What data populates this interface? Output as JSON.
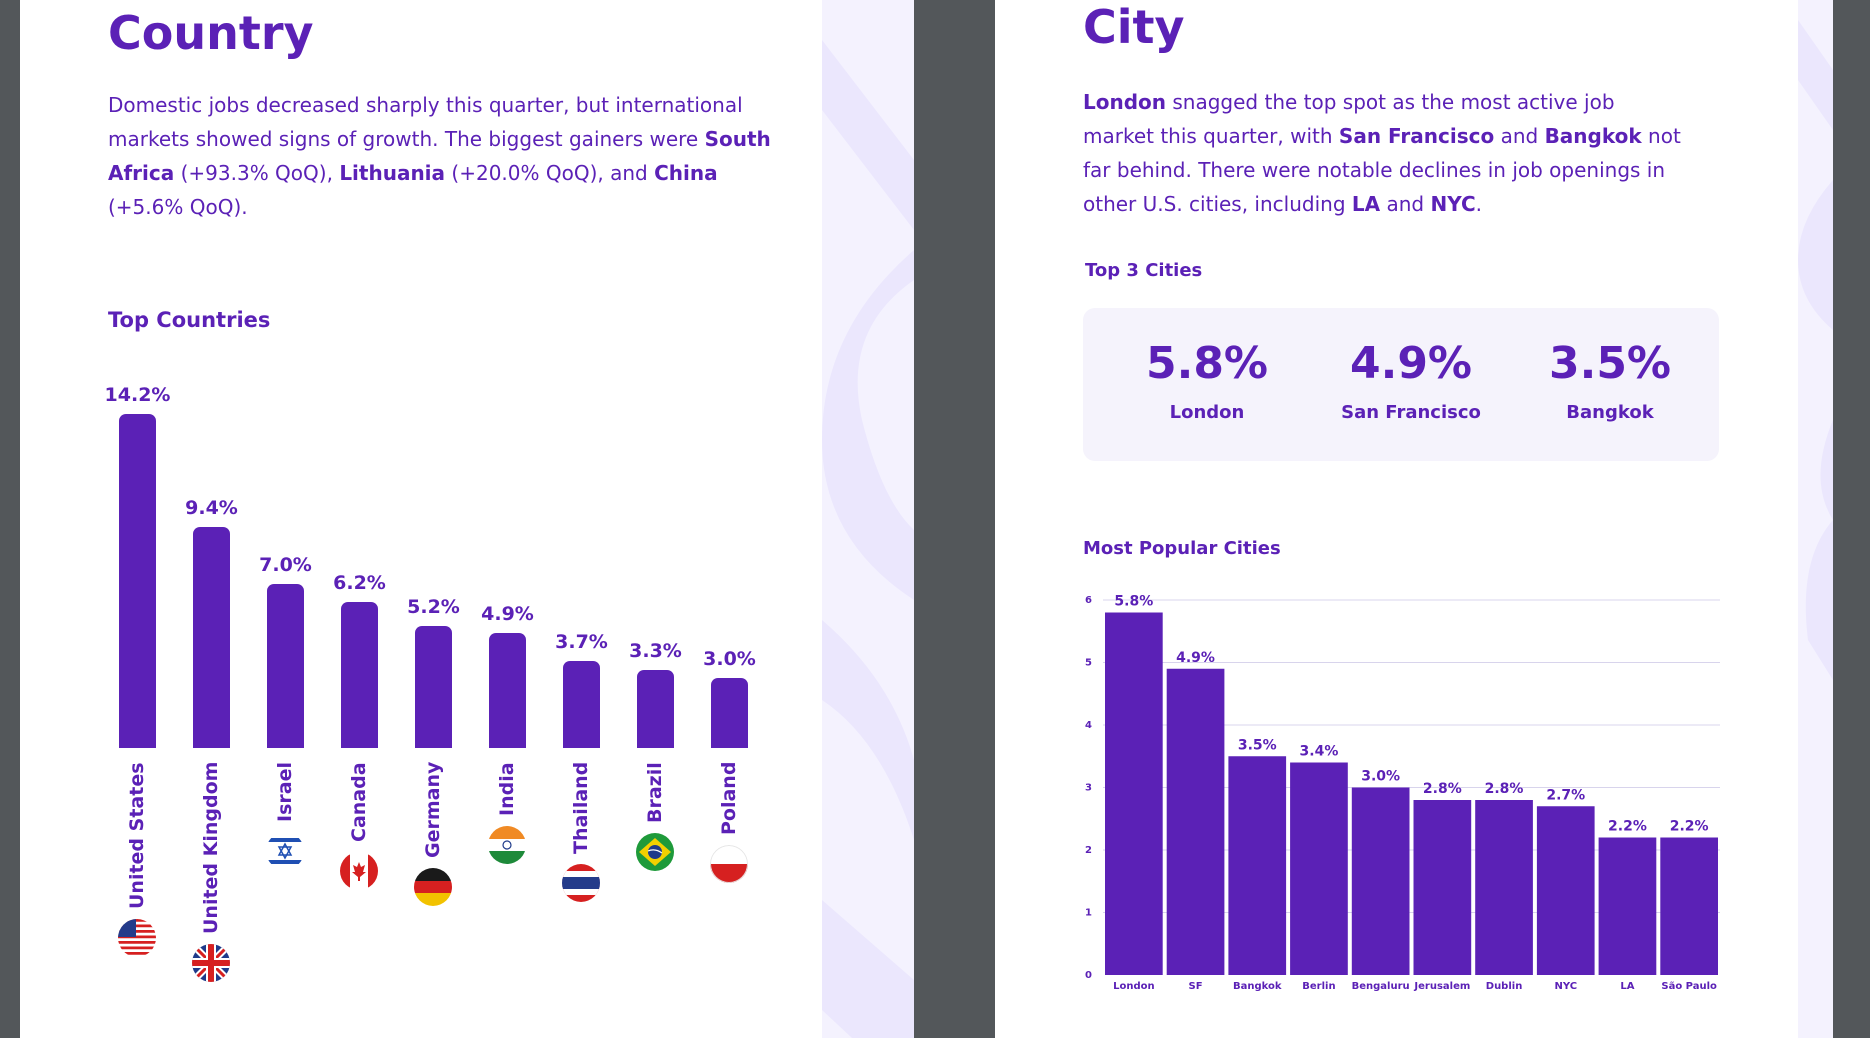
{
  "country": {
    "title": "Country",
    "para_parts": [
      {
        "t": "Domestic jobs decreased sharply this quarter, but international  markets showed signs of growth. The biggest gainers were ",
        "b": false
      },
      {
        "t": "South  Africa",
        "b": true
      },
      {
        "t": " (+93.3% QoQ), ",
        "b": false
      },
      {
        "t": "Lithuania",
        "b": true
      },
      {
        "t": " (+20.0% QoQ), and ",
        "b": false
      },
      {
        "t": "China",
        "b": true
      },
      {
        "t": " (+5.6% QoQ).",
        "b": false
      }
    ],
    "chart_title": "Top Countries"
  },
  "city": {
    "title": "City",
    "para_parts": [
      {
        "t": "London",
        "b": true
      },
      {
        "t": " snagged the top spot as the most active job market this quarter, with ",
        "b": false
      },
      {
        "t": "San Francisco",
        "b": true
      },
      {
        "t": " and ",
        "b": false
      },
      {
        "t": "Bangkok",
        "b": true
      },
      {
        "t": " not far behind. There were notable declines in job openings in other U.S. cities, including ",
        "b": false
      },
      {
        "t": "LA",
        "b": true
      },
      {
        "t": " and ",
        "b": false
      },
      {
        "t": "NYC",
        "b": true
      },
      {
        "t": ".",
        "b": false
      }
    ],
    "top3_title": "Top 3 Cities",
    "top3": [
      {
        "value": "5.8%",
        "label": "London"
      },
      {
        "value": "4.9%",
        "label": "San Francisco"
      },
      {
        "value": "3.5%",
        "label": "Bangkok"
      }
    ],
    "chart_title": "Most Popular Cities"
  },
  "colors": {
    "accent": "#5b21b6",
    "background": "#53575a",
    "panel": "#f5f3fc",
    "decor": "#f4f2fe"
  },
  "chart_data": [
    {
      "type": "bar",
      "title": "Top Countries",
      "categories": [
        "United States",
        "United Kingdom",
        "Israel",
        "Canada",
        "Germany",
        "India",
        "Thailand",
        "Brazil",
        "Poland"
      ],
      "values": [
        14.2,
        9.4,
        7.0,
        6.2,
        5.2,
        4.9,
        3.7,
        3.3,
        3.0
      ],
      "labels": [
        "14.2%",
        "9.4%",
        "7.0%",
        "6.2%",
        "5.2%",
        "4.9%",
        "3.7%",
        "3.3%",
        "3.0%"
      ],
      "flags": [
        "flag-us",
        "flag-uk",
        "flag-israel",
        "flag-canada",
        "flag-germany",
        "flag-india",
        "flag-thailand",
        "flag-brazil",
        "flag-poland"
      ],
      "color": "#5b21b6"
    },
    {
      "type": "bar",
      "title": "Most Popular Cities",
      "categories": [
        "London",
        "SF",
        "Bangkok",
        "Berlin",
        "Bengaluru",
        "Jerusalem",
        "Dublin",
        "NYC",
        "LA",
        "São Paulo"
      ],
      "values": [
        5.8,
        4.9,
        3.5,
        3.4,
        3.0,
        2.8,
        2.8,
        2.7,
        2.2,
        2.2
      ],
      "labels": [
        "5.8%",
        "4.9%",
        "3.5%",
        "3.4%",
        "3.0%",
        "2.8%",
        "2.8%",
        "2.7%",
        "2.2%",
        "2.2%"
      ],
      "ylim": [
        0,
        6
      ],
      "yticks": [
        "0",
        "1",
        "2",
        "3",
        "4",
        "5",
        "6"
      ],
      "grid": true,
      "color": "#5b21b6"
    }
  ]
}
